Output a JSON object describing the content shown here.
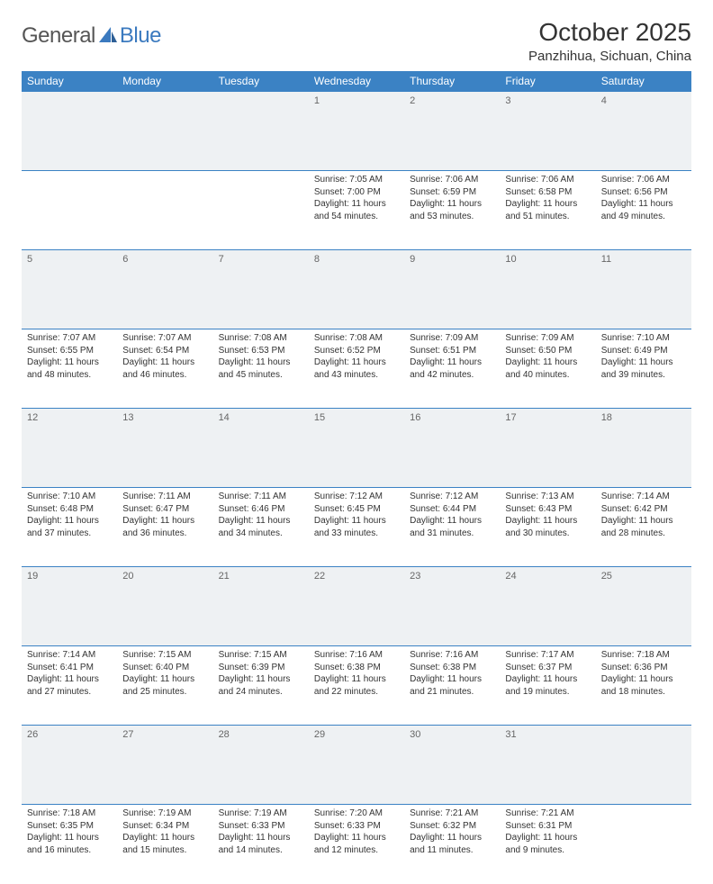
{
  "logo": {
    "general": "General",
    "blue": "Blue"
  },
  "title": "October 2025",
  "location": "Panzhihua, Sichuan, China",
  "colors": {
    "header_bg": "#3b82c4",
    "header_fg": "#ffffff",
    "border": "#3b82c4",
    "daynum_bg": "#eef1f3",
    "text": "#333333",
    "logo_gray": "#555555",
    "logo_blue": "#3b7abf"
  },
  "days": [
    "Sunday",
    "Monday",
    "Tuesday",
    "Wednesday",
    "Thursday",
    "Friday",
    "Saturday"
  ],
  "weeks": [
    [
      {
        "n": "",
        "sr": "",
        "ss": "",
        "dl": ""
      },
      {
        "n": "",
        "sr": "",
        "ss": "",
        "dl": ""
      },
      {
        "n": "",
        "sr": "",
        "ss": "",
        "dl": ""
      },
      {
        "n": "1",
        "sr": "Sunrise: 7:05 AM",
        "ss": "Sunset: 7:00 PM",
        "dl": "Daylight: 11 hours and 54 minutes."
      },
      {
        "n": "2",
        "sr": "Sunrise: 7:06 AM",
        "ss": "Sunset: 6:59 PM",
        "dl": "Daylight: 11 hours and 53 minutes."
      },
      {
        "n": "3",
        "sr": "Sunrise: 7:06 AM",
        "ss": "Sunset: 6:58 PM",
        "dl": "Daylight: 11 hours and 51 minutes."
      },
      {
        "n": "4",
        "sr": "Sunrise: 7:06 AM",
        "ss": "Sunset: 6:56 PM",
        "dl": "Daylight: 11 hours and 49 minutes."
      }
    ],
    [
      {
        "n": "5",
        "sr": "Sunrise: 7:07 AM",
        "ss": "Sunset: 6:55 PM",
        "dl": "Daylight: 11 hours and 48 minutes."
      },
      {
        "n": "6",
        "sr": "Sunrise: 7:07 AM",
        "ss": "Sunset: 6:54 PM",
        "dl": "Daylight: 11 hours and 46 minutes."
      },
      {
        "n": "7",
        "sr": "Sunrise: 7:08 AM",
        "ss": "Sunset: 6:53 PM",
        "dl": "Daylight: 11 hours and 45 minutes."
      },
      {
        "n": "8",
        "sr": "Sunrise: 7:08 AM",
        "ss": "Sunset: 6:52 PM",
        "dl": "Daylight: 11 hours and 43 minutes."
      },
      {
        "n": "9",
        "sr": "Sunrise: 7:09 AM",
        "ss": "Sunset: 6:51 PM",
        "dl": "Daylight: 11 hours and 42 minutes."
      },
      {
        "n": "10",
        "sr": "Sunrise: 7:09 AM",
        "ss": "Sunset: 6:50 PM",
        "dl": "Daylight: 11 hours and 40 minutes."
      },
      {
        "n": "11",
        "sr": "Sunrise: 7:10 AM",
        "ss": "Sunset: 6:49 PM",
        "dl": "Daylight: 11 hours and 39 minutes."
      }
    ],
    [
      {
        "n": "12",
        "sr": "Sunrise: 7:10 AM",
        "ss": "Sunset: 6:48 PM",
        "dl": "Daylight: 11 hours and 37 minutes."
      },
      {
        "n": "13",
        "sr": "Sunrise: 7:11 AM",
        "ss": "Sunset: 6:47 PM",
        "dl": "Daylight: 11 hours and 36 minutes."
      },
      {
        "n": "14",
        "sr": "Sunrise: 7:11 AM",
        "ss": "Sunset: 6:46 PM",
        "dl": "Daylight: 11 hours and 34 minutes."
      },
      {
        "n": "15",
        "sr": "Sunrise: 7:12 AM",
        "ss": "Sunset: 6:45 PM",
        "dl": "Daylight: 11 hours and 33 minutes."
      },
      {
        "n": "16",
        "sr": "Sunrise: 7:12 AM",
        "ss": "Sunset: 6:44 PM",
        "dl": "Daylight: 11 hours and 31 minutes."
      },
      {
        "n": "17",
        "sr": "Sunrise: 7:13 AM",
        "ss": "Sunset: 6:43 PM",
        "dl": "Daylight: 11 hours and 30 minutes."
      },
      {
        "n": "18",
        "sr": "Sunrise: 7:14 AM",
        "ss": "Sunset: 6:42 PM",
        "dl": "Daylight: 11 hours and 28 minutes."
      }
    ],
    [
      {
        "n": "19",
        "sr": "Sunrise: 7:14 AM",
        "ss": "Sunset: 6:41 PM",
        "dl": "Daylight: 11 hours and 27 minutes."
      },
      {
        "n": "20",
        "sr": "Sunrise: 7:15 AM",
        "ss": "Sunset: 6:40 PM",
        "dl": "Daylight: 11 hours and 25 minutes."
      },
      {
        "n": "21",
        "sr": "Sunrise: 7:15 AM",
        "ss": "Sunset: 6:39 PM",
        "dl": "Daylight: 11 hours and 24 minutes."
      },
      {
        "n": "22",
        "sr": "Sunrise: 7:16 AM",
        "ss": "Sunset: 6:38 PM",
        "dl": "Daylight: 11 hours and 22 minutes."
      },
      {
        "n": "23",
        "sr": "Sunrise: 7:16 AM",
        "ss": "Sunset: 6:38 PM",
        "dl": "Daylight: 11 hours and 21 minutes."
      },
      {
        "n": "24",
        "sr": "Sunrise: 7:17 AM",
        "ss": "Sunset: 6:37 PM",
        "dl": "Daylight: 11 hours and 19 minutes."
      },
      {
        "n": "25",
        "sr": "Sunrise: 7:18 AM",
        "ss": "Sunset: 6:36 PM",
        "dl": "Daylight: 11 hours and 18 minutes."
      }
    ],
    [
      {
        "n": "26",
        "sr": "Sunrise: 7:18 AM",
        "ss": "Sunset: 6:35 PM",
        "dl": "Daylight: 11 hours and 16 minutes."
      },
      {
        "n": "27",
        "sr": "Sunrise: 7:19 AM",
        "ss": "Sunset: 6:34 PM",
        "dl": "Daylight: 11 hours and 15 minutes."
      },
      {
        "n": "28",
        "sr": "Sunrise: 7:19 AM",
        "ss": "Sunset: 6:33 PM",
        "dl": "Daylight: 11 hours and 14 minutes."
      },
      {
        "n": "29",
        "sr": "Sunrise: 7:20 AM",
        "ss": "Sunset: 6:33 PM",
        "dl": "Daylight: 11 hours and 12 minutes."
      },
      {
        "n": "30",
        "sr": "Sunrise: 7:21 AM",
        "ss": "Sunset: 6:32 PM",
        "dl": "Daylight: 11 hours and 11 minutes."
      },
      {
        "n": "31",
        "sr": "Sunrise: 7:21 AM",
        "ss": "Sunset: 6:31 PM",
        "dl": "Daylight: 11 hours and 9 minutes."
      },
      {
        "n": "",
        "sr": "",
        "ss": "",
        "dl": ""
      }
    ]
  ]
}
